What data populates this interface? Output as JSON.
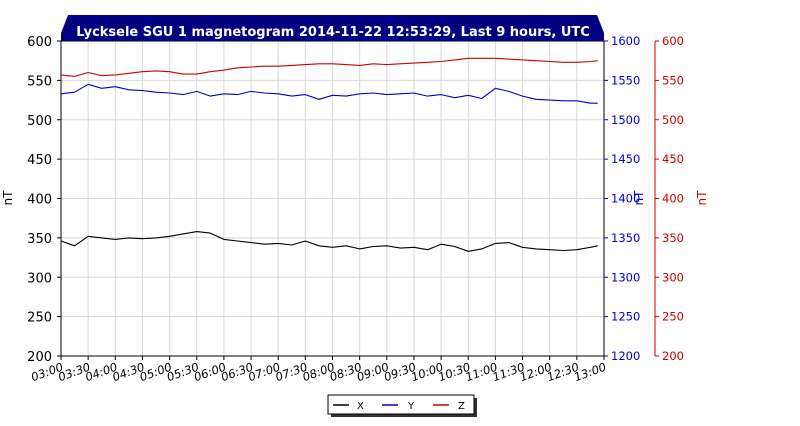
{
  "chart_data": {
    "type": "line",
    "title": "Lycksele SGU 1 magnetogram 2014-11-22 12:53:29, Last 9 hours, UTC",
    "x_ticks": [
      "03:00",
      "03:30",
      "04:00",
      "04:30",
      "05:00",
      "05:30",
      "06:00",
      "06:30",
      "07:00",
      "07:30",
      "08:00",
      "08:30",
      "09:00",
      "09:30",
      "10:00",
      "10:30",
      "11:00",
      "11:30",
      "12:00",
      "12:30",
      "13:00"
    ],
    "xlim": [
      "03:00",
      "13:00"
    ],
    "grid": true,
    "legend_position": "bottom",
    "axes": {
      "left": {
        "label": "nT",
        "ylim": [
          200,
          600
        ],
        "ticks": [
          "200",
          "250",
          "300",
          "350",
          "400",
          "450",
          "500",
          "550",
          "600"
        ],
        "color": "#000000"
      },
      "right1": {
        "label": "nT",
        "ylim": [
          1200,
          1600
        ],
        "ticks": [
          "1200",
          "1250",
          "1300",
          "1350",
          "1400",
          "1450",
          "1500",
          "1550",
          "1600"
        ],
        "color": "#0000cc"
      },
      "right2": {
        "label": "nT",
        "ylim": [
          200,
          600
        ],
        "ticks": [
          "200",
          "250",
          "300",
          "350",
          "400",
          "450",
          "500",
          "550",
          "600"
        ],
        "color": "#cc0000"
      }
    },
    "series": [
      {
        "name": "X",
        "axis": "left",
        "color": "#000000",
        "x": [
          "03:00",
          "03:15",
          "03:30",
          "03:45",
          "04:00",
          "04:15",
          "04:30",
          "04:45",
          "05:00",
          "05:15",
          "05:30",
          "05:45",
          "06:00",
          "06:15",
          "06:30",
          "06:45",
          "07:00",
          "07:15",
          "07:30",
          "07:45",
          "08:00",
          "08:15",
          "08:30",
          "08:45",
          "09:00",
          "09:15",
          "09:30",
          "09:45",
          "10:00",
          "10:15",
          "10:30",
          "10:45",
          "11:00",
          "11:15",
          "11:30",
          "11:45",
          "12:00",
          "12:15",
          "12:30",
          "12:45",
          "12:53"
        ],
        "values": [
          346,
          340,
          352,
          350,
          348,
          350,
          349,
          350,
          352,
          355,
          358,
          356,
          348,
          346,
          344,
          342,
          343,
          341,
          346,
          340,
          338,
          340,
          336,
          339,
          340,
          337,
          338,
          335,
          342,
          339,
          333,
          336,
          343,
          344,
          338,
          336,
          335,
          334,
          335,
          338,
          340
        ]
      },
      {
        "name": "Y",
        "axis": "right1",
        "color": "#0000cc",
        "x": [
          "03:00",
          "03:15",
          "03:30",
          "03:45",
          "04:00",
          "04:15",
          "04:30",
          "04:45",
          "05:00",
          "05:15",
          "05:30",
          "05:45",
          "06:00",
          "06:15",
          "06:30",
          "06:45",
          "07:00",
          "07:15",
          "07:30",
          "07:45",
          "08:00",
          "08:15",
          "08:30",
          "08:45",
          "09:00",
          "09:15",
          "09:30",
          "09:45",
          "10:00",
          "10:15",
          "10:30",
          "10:45",
          "11:00",
          "11:15",
          "11:30",
          "11:45",
          "12:00",
          "12:15",
          "12:30",
          "12:45",
          "12:53"
        ],
        "values": [
          1533,
          1535,
          1545,
          1540,
          1542,
          1538,
          1537,
          1535,
          1534,
          1532,
          1536,
          1530,
          1533,
          1532,
          1536,
          1534,
          1533,
          1530,
          1532,
          1526,
          1531,
          1530,
          1533,
          1534,
          1532,
          1533,
          1534,
          1530,
          1532,
          1528,
          1531,
          1527,
          1540,
          1536,
          1530,
          1526,
          1525,
          1524,
          1524,
          1521,
          1521
        ]
      },
      {
        "name": "Z",
        "axis": "right2",
        "color": "#cc0000",
        "x": [
          "03:00",
          "03:15",
          "03:30",
          "03:45",
          "04:00",
          "04:15",
          "04:30",
          "04:45",
          "05:00",
          "05:15",
          "05:30",
          "05:45",
          "06:00",
          "06:15",
          "06:30",
          "06:45",
          "07:00",
          "07:15",
          "07:30",
          "07:45",
          "08:00",
          "08:15",
          "08:30",
          "08:45",
          "09:00",
          "09:15",
          "09:30",
          "09:45",
          "10:00",
          "10:15",
          "10:30",
          "10:45",
          "11:00",
          "11:15",
          "11:30",
          "11:45",
          "12:00",
          "12:15",
          "12:30",
          "12:45",
          "12:53"
        ],
        "values": [
          557,
          555,
          560,
          556,
          557,
          559,
          561,
          562,
          561,
          558,
          558,
          561,
          563,
          566,
          567,
          568,
          568,
          569,
          570,
          571,
          571,
          570,
          569,
          571,
          570,
          571,
          572,
          573,
          574,
          576,
          578,
          578,
          578,
          577,
          576,
          575,
          574,
          573,
          573,
          574,
          575
        ]
      }
    ]
  }
}
